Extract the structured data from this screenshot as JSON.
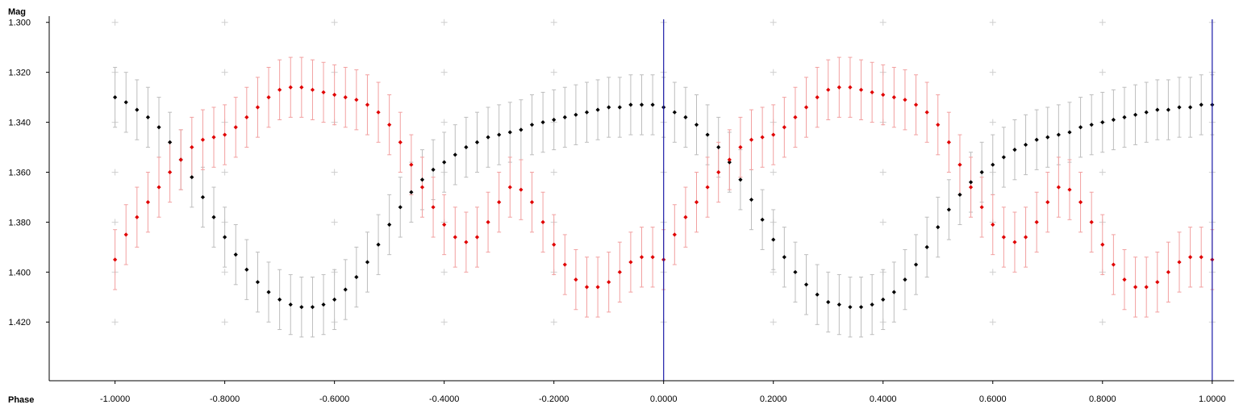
{
  "chart_data": {
    "type": "scatter",
    "xlabel": "Phase",
    "ylabel": "Mag",
    "xlim": [
      -1.12,
      1.04
    ],
    "ylim": [
      1.2975,
      1.4435
    ],
    "y_inverted": true,
    "grid": "plus-markers",
    "x_ticks": [
      "-1.0000",
      "-0.8000",
      "-0.6000",
      "-0.4000",
      "-0.2000",
      "0.0000",
      "0.2000",
      "0.4000",
      "0.6000",
      "0.8000",
      "1.0000"
    ],
    "y_ticks": [
      "1.300",
      "1.320",
      "1.340",
      "1.360",
      "1.380",
      "1.400",
      "1.420"
    ],
    "marker_lines_x": [
      0.0,
      1.0
    ],
    "colors": {
      "black_series": "#000000",
      "black_error": "#bdbdbd",
      "red_series": "#e00000",
      "red_error": "#f2a0a0",
      "marker_line": "#1a1aa8",
      "grid": "#cfcfcf"
    },
    "series": [
      {
        "color": "black",
        "error_mag": 0.012,
        "x": [
          -1.0,
          -0.98,
          -0.96,
          -0.94,
          -0.92,
          -0.9,
          -0.88,
          -0.86,
          -0.84,
          -0.82,
          -0.8,
          -0.78,
          -0.76,
          -0.74,
          -0.72,
          -0.7,
          -0.68,
          -0.66,
          -0.64,
          -0.62,
          -0.6,
          -0.58,
          -0.56,
          -0.54,
          -0.52,
          -0.5,
          -0.48,
          -0.46,
          -0.44,
          -0.42,
          -0.4,
          -0.38,
          -0.36,
          -0.34,
          -0.32,
          -0.3,
          -0.28,
          -0.26,
          -0.24,
          -0.22,
          -0.2,
          -0.18,
          -0.16,
          -0.14,
          -0.12,
          -0.1,
          -0.08,
          -0.06,
          -0.04,
          -0.02,
          0.0,
          0.02,
          0.04,
          0.06,
          0.08,
          0.1,
          0.12,
          0.14,
          0.16,
          0.18,
          0.2,
          0.22,
          0.24,
          0.26,
          0.28,
          0.3,
          0.32,
          0.34,
          0.36,
          0.38,
          0.4,
          0.42,
          0.44,
          0.46,
          0.48,
          0.5,
          0.52,
          0.54,
          0.56,
          0.58,
          0.6,
          0.62,
          0.64,
          0.66,
          0.68,
          0.7,
          0.72,
          0.74,
          0.76,
          0.78,
          0.8,
          0.82,
          0.84,
          0.86,
          0.88,
          0.9,
          0.92,
          0.94,
          0.96,
          0.98,
          1.0
        ],
        "y": [
          1.33,
          1.332,
          1.335,
          1.338,
          1.342,
          1.348,
          1.355,
          1.362,
          1.37,
          1.378,
          1.386,
          1.393,
          1.399,
          1.404,
          1.408,
          1.411,
          1.413,
          1.414,
          1.414,
          1.413,
          1.411,
          1.407,
          1.402,
          1.396,
          1.389,
          1.381,
          1.374,
          1.368,
          1.363,
          1.359,
          1.356,
          1.353,
          1.35,
          1.348,
          1.346,
          1.345,
          1.344,
          1.343,
          1.341,
          1.34,
          1.339,
          1.338,
          1.337,
          1.336,
          1.335,
          1.334,
          1.334,
          1.333,
          1.333,
          1.333,
          1.334,
          1.336,
          1.338,
          1.341,
          1.345,
          1.35,
          1.356,
          1.363,
          1.371,
          1.379,
          1.387,
          1.394,
          1.4,
          1.405,
          1.409,
          1.412,
          1.413,
          1.414,
          1.414,
          1.413,
          1.411,
          1.408,
          1.403,
          1.397,
          1.39,
          1.382,
          1.375,
          1.369,
          1.364,
          1.36,
          1.357,
          1.354,
          1.351,
          1.349,
          1.347,
          1.346,
          1.345,
          1.344,
          1.342,
          1.341,
          1.34,
          1.339,
          1.338,
          1.337,
          1.336,
          1.335,
          1.335,
          1.334,
          1.334,
          1.333,
          1.333
        ]
      },
      {
        "color": "red",
        "error_mag": 0.012,
        "x": [
          -1.0,
          -0.98,
          -0.96,
          -0.94,
          -0.92,
          -0.9,
          -0.88,
          -0.86,
          -0.84,
          -0.82,
          -0.8,
          -0.78,
          -0.76,
          -0.74,
          -0.72,
          -0.7,
          -0.68,
          -0.66,
          -0.64,
          -0.62,
          -0.6,
          -0.58,
          -0.56,
          -0.54,
          -0.52,
          -0.5,
          -0.48,
          -0.46,
          -0.44,
          -0.42,
          -0.4,
          -0.38,
          -0.36,
          -0.34,
          -0.32,
          -0.3,
          -0.28,
          -0.26,
          -0.24,
          -0.22,
          -0.2,
          -0.18,
          -0.16,
          -0.14,
          -0.12,
          -0.1,
          -0.08,
          -0.06,
          -0.04,
          -0.02,
          0.0,
          0.02,
          0.04,
          0.06,
          0.08,
          0.1,
          0.12,
          0.14,
          0.16,
          0.18,
          0.2,
          0.22,
          0.24,
          0.26,
          0.28,
          0.3,
          0.32,
          0.34,
          0.36,
          0.38,
          0.4,
          0.42,
          0.44,
          0.46,
          0.48,
          0.5,
          0.52,
          0.54,
          0.56,
          0.58,
          0.6,
          0.62,
          0.64,
          0.66,
          0.68,
          0.7,
          0.72,
          0.74,
          0.76,
          0.78,
          0.8,
          0.82,
          0.84,
          0.86,
          0.88,
          0.9,
          0.92,
          0.94,
          0.96,
          0.98,
          1.0
        ],
        "y": [
          1.395,
          1.385,
          1.378,
          1.372,
          1.366,
          1.36,
          1.355,
          1.35,
          1.347,
          1.346,
          1.345,
          1.342,
          1.338,
          1.334,
          1.33,
          1.327,
          1.326,
          1.326,
          1.327,
          1.328,
          1.329,
          1.33,
          1.331,
          1.333,
          1.336,
          1.341,
          1.348,
          1.357,
          1.366,
          1.374,
          1.381,
          1.386,
          1.388,
          1.386,
          1.38,
          1.372,
          1.366,
          1.367,
          1.372,
          1.38,
          1.389,
          1.397,
          1.403,
          1.406,
          1.406,
          1.404,
          1.4,
          1.396,
          1.394,
          1.394,
          1.395,
          1.385,
          1.378,
          1.372,
          1.366,
          1.36,
          1.355,
          1.35,
          1.347,
          1.346,
          1.345,
          1.342,
          1.338,
          1.334,
          1.33,
          1.327,
          1.326,
          1.326,
          1.327,
          1.328,
          1.329,
          1.33,
          1.331,
          1.333,
          1.336,
          1.341,
          1.348,
          1.357,
          1.366,
          1.374,
          1.381,
          1.386,
          1.388,
          1.386,
          1.38,
          1.372,
          1.366,
          1.367,
          1.372,
          1.38,
          1.389,
          1.397,
          1.403,
          1.406,
          1.406,
          1.404,
          1.4,
          1.396,
          1.394,
          1.394,
          1.395
        ]
      }
    ]
  }
}
